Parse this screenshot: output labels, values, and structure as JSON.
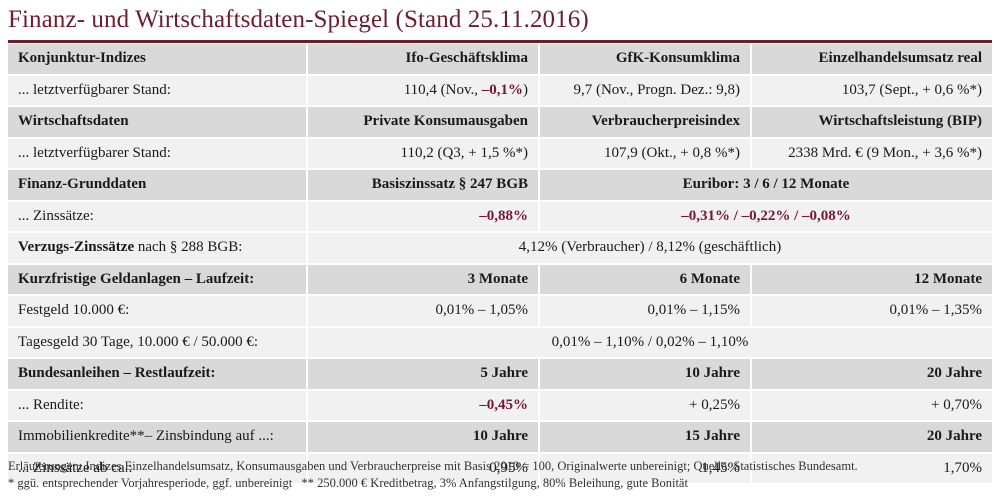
{
  "title": "Finanz- und Wirtschaftsdaten-Spiegel (Stand 25.11.2016)",
  "konjunktur": {
    "label": "Konjunktur-Indizes",
    "col1": "Ifo-Geschäftsklima",
    "col2": "GfK-Konsumklima",
    "col3": "Einzelhandelsumsatz real",
    "stand_label": "... letztverfügbarer Stand:",
    "v1_pre": "110,4 (Nov., ",
    "v1_neg": "–0,1%",
    "v1_post": ")",
    "v2": "9,7 (Nov., Progn. Dez.: 9,8)",
    "v3": "103,7 (Sept., + 0,6 %*)"
  },
  "wirtschaft": {
    "label": "Wirtschaftsdaten",
    "col1": "Private Konsumausgaben",
    "col2": "Verbraucherpreisindex",
    "col3": "Wirtschaftsleistung (BIP)",
    "stand_label": "... letztverfügbarer Stand:",
    "v1": "110,2 (Q3, + 1,5 %*)",
    "v2": "107,9 (Okt., + 0,8 %*)",
    "v3": "2338 Mrd. € (9 Mon., + 3,6 %*)"
  },
  "finanz": {
    "label": "Finanz-Grunddaten",
    "col1": "Basiszinssatz § 247 BGB",
    "col2": "Euribor: 3 / 6 / 12 Monate",
    "zins_label": "... Zinssätze:",
    "v1": "–0,88%",
    "v2": "–0,31% / –0,22% / –0,08%"
  },
  "verzug": {
    "label_bold": "Verzugs-Zinssätze",
    "label_rest": " nach § 288 BGB:",
    "value": "4,12% (Verbraucher) / 8,12% (geschäftlich)"
  },
  "kurzfristig": {
    "label": "Kurzfristige Geldanlagen – Laufzeit:",
    "col1": "3 Monate",
    "col2": "6 Monate",
    "col3": "12 Monate",
    "festgeld_label": "Festgeld 10.000 €:",
    "f1": "0,01% – 1,05%",
    "f2": "0,01% – 1,15%",
    "f3": "0,01% – 1,35%",
    "tagesgeld_label": "Tagesgeld 30 Tage, 10.000 € / 50.000 €:",
    "tagesgeld_value": "0,01% – 1,10% / 0,02% – 1,10%"
  },
  "anleihen": {
    "label": "Bundesanleihen – Restlaufzeit:",
    "col1": "5 Jahre",
    "col2": "10 Jahre",
    "col3": "20 Jahre",
    "rendite_label": "... Rendite:",
    "r1": "–0,45%",
    "r2": "+ 0,25%",
    "r3": "+ 0,70%"
  },
  "immobilien": {
    "label": "Immobilienkredite**– Zinsbindung auf ...:",
    "col1": "10 Jahre",
    "col2": "15 Jahre",
    "col3": "20 Jahre",
    "zins_label": "... Zinssätze ab ca.:",
    "z1": "0,95%",
    "z2": "1,45%",
    "z3": "1,70%"
  },
  "footnotes": {
    "line1": "Erläuterungen: Indizes Einzelhandelsumsatz, Konsumausgaben und Verbraucherpreise mit Basis 2010 = 100, Originalwerte unbereinigt; Quelle: Statistisches Bundesamt.",
    "line2": "* ggü. entsprechender Vorjahresperiode, ggf. unbereinigt   ** 250.000 € Kreditbetrag, 3% Anfangstilgung, 80% Beleihung, gute Bonität"
  },
  "colors": {
    "accent": "#6b1f2e",
    "negative": "#7a1630",
    "row_dark": "#d9d9d9",
    "row_light": "#f1f1f1"
  }
}
